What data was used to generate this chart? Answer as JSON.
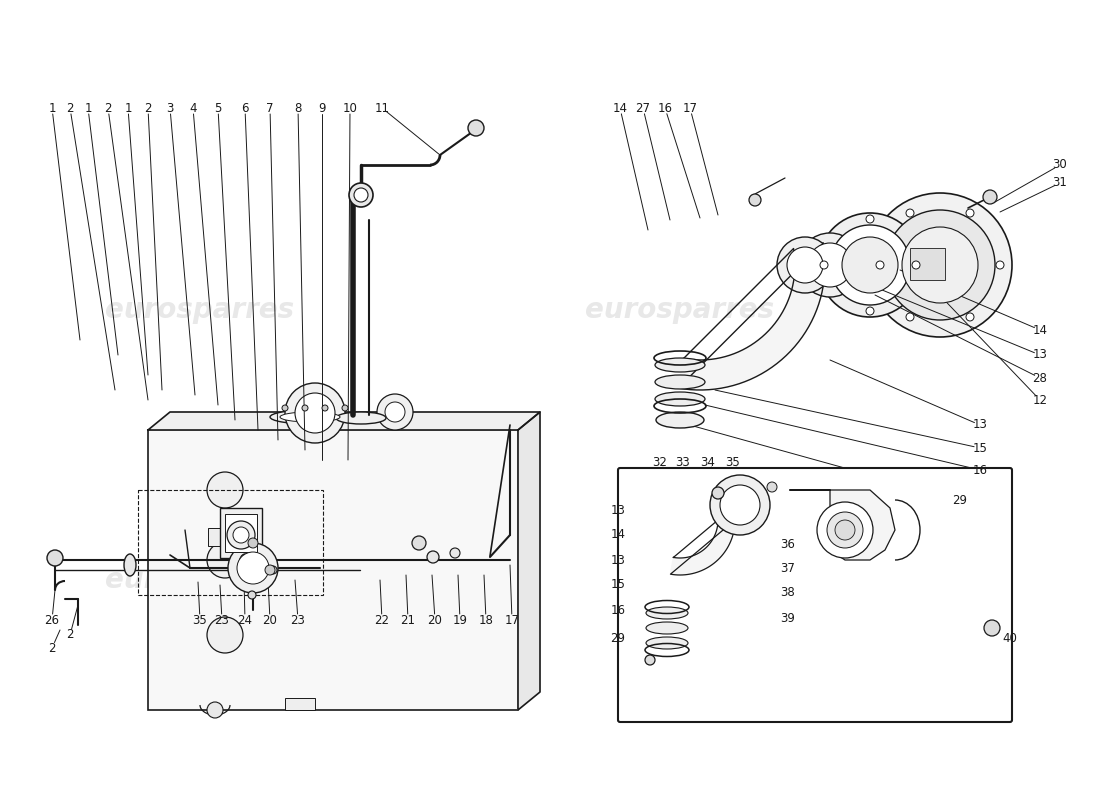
{
  "bg_color": "#ffffff",
  "line_color": "#1a1a1a",
  "figsize": [
    11.0,
    8.0
  ],
  "dpi": 100,
  "watermark": "eurosparres",
  "wm_color": "#cccccc",
  "wm_alpha": 0.45
}
